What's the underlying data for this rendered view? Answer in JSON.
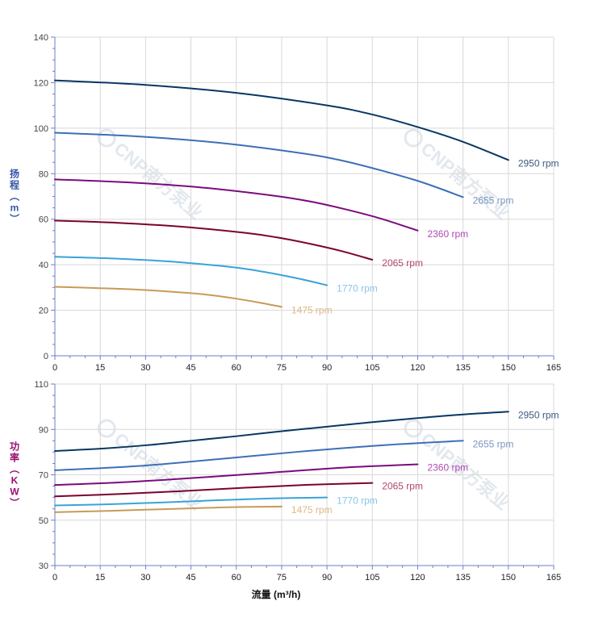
{
  "chart_data": [
    {
      "type": "line",
      "ylabel": "扬程（m）",
      "ylabel_color": "#3355aa",
      "xlim": [
        0,
        165
      ],
      "ylim": [
        0,
        140
      ],
      "x_ticks": [
        0,
        15,
        30,
        45,
        60,
        75,
        90,
        105,
        120,
        135,
        150,
        165
      ],
      "y_ticks": [
        0,
        20,
        40,
        60,
        80,
        100,
        120,
        140
      ],
      "grid": true,
      "series": [
        {
          "name": "2950 rpm",
          "color": "#073763",
          "label_color": "#3d5a80",
          "x": [
            0,
            30,
            60,
            90,
            105,
            120,
            135,
            150
          ],
          "y": [
            121,
            119,
            115.5,
            110,
            106,
            100.5,
            94,
            86
          ]
        },
        {
          "name": "2655 rpm",
          "color": "#3d6fb8",
          "label_color": "#7a96c2",
          "x": [
            0,
            27,
            54,
            81,
            94.5,
            108,
            121.5,
            135
          ],
          "y": [
            98,
            96.4,
            93.6,
            89.1,
            85.9,
            81.4,
            76.2,
            69.7
          ]
        },
        {
          "name": "2360 rpm",
          "color": "#7b0a7f",
          "label_color": "#b04ab4",
          "x": [
            0,
            24,
            48,
            72,
            84,
            96,
            108,
            120
          ],
          "y": [
            77.5,
            76.2,
            74,
            70.4,
            67.9,
            64.4,
            60.2,
            55
          ]
        },
        {
          "name": "2065 rpm",
          "color": "#7a0230",
          "label_color": "#b04a6a",
          "x": [
            0,
            21,
            42,
            63,
            73.5,
            84,
            94.5,
            105
          ],
          "y": [
            59.4,
            58.4,
            56.7,
            54,
            52,
            49.3,
            46.1,
            42.2
          ]
        },
        {
          "name": "1770 rpm",
          "color": "#3aa3d8",
          "label_color": "#88c6e8",
          "x": [
            0,
            18,
            36,
            54,
            63,
            72,
            81,
            90
          ],
          "y": [
            43.5,
            42.8,
            41.6,
            39.6,
            38.2,
            36.2,
            33.8,
            31
          ]
        },
        {
          "name": "1475 rpm",
          "color": "#c89a5a",
          "label_color": "#deb887",
          "x": [
            0,
            15,
            30,
            45,
            52.5,
            60,
            67.5,
            75
          ],
          "y": [
            30.3,
            29.7,
            28.9,
            27.5,
            26.5,
            25.1,
            23.4,
            21.5
          ]
        }
      ]
    },
    {
      "type": "line",
      "ylabel": "功率（KW）",
      "ylabel_color": "#9a1070",
      "xlabel": "流量 (m³/h)",
      "xlim": [
        0,
        165
      ],
      "ylim": [
        30,
        110
      ],
      "x_ticks": [
        0,
        15,
        30,
        45,
        60,
        75,
        90,
        105,
        120,
        135,
        150,
        165
      ],
      "y_ticks": [
        30,
        50,
        70,
        90,
        110
      ],
      "grid": true,
      "series": [
        {
          "name": "2950 rpm",
          "color": "#073763",
          "label_color": "#3d5a80",
          "x": [
            0,
            15,
            30,
            45,
            60,
            75,
            90,
            105,
            120,
            135,
            150
          ],
          "y": [
            80.5,
            81.5,
            83,
            85,
            87,
            89.2,
            91.2,
            93.2,
            95,
            96.6,
            97.8
          ]
        },
        {
          "name": "2655 rpm",
          "color": "#3d6fb8",
          "label_color": "#7a96c2",
          "x": [
            0,
            27,
            54,
            81,
            108,
            135
          ],
          "y": [
            72,
            73.8,
            76.9,
            80.2,
            83,
            85
          ]
        },
        {
          "name": "2360 rpm",
          "color": "#7b0a7f",
          "label_color": "#b04ab4",
          "x": [
            0,
            24,
            48,
            72,
            96,
            120
          ],
          "y": [
            65.5,
            66.8,
            68.8,
            71,
            73.2,
            74.6
          ]
        },
        {
          "name": "2065 rpm",
          "color": "#7a0230",
          "label_color": "#b04a6a",
          "x": [
            0,
            21,
            42,
            63,
            84,
            105
          ],
          "y": [
            60.5,
            61.5,
            62.8,
            64.3,
            65.6,
            66.4
          ]
        },
        {
          "name": "1770 rpm",
          "color": "#3aa3d8",
          "label_color": "#88c6e8",
          "x": [
            0,
            18,
            36,
            54,
            72,
            90
          ],
          "y": [
            56.5,
            57,
            57.8,
            58.8,
            59.6,
            60
          ]
        },
        {
          "name": "1475 rpm",
          "color": "#c89a5a",
          "label_color": "#deb887",
          "x": [
            0,
            15,
            30,
            45,
            60,
            75
          ],
          "y": [
            53.5,
            54,
            54.6,
            55.2,
            55.8,
            56
          ]
        }
      ]
    }
  ],
  "watermark": {
    "brand": "CNP",
    "cn": "南方泵业",
    "color": "#e2e8ee"
  }
}
